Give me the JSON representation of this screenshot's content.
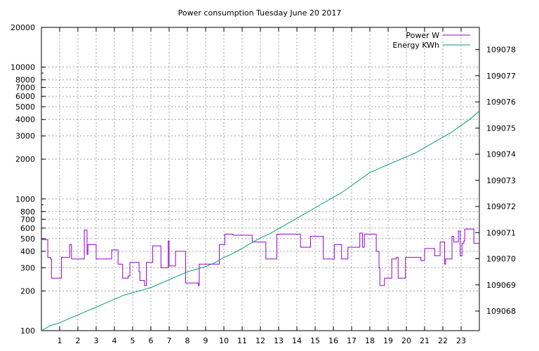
{
  "chart_data": {
    "type": "line",
    "title": "Power consumption Tuesday June 20 2017",
    "x_ticks": [
      "1",
      "2",
      "3",
      "4",
      "5",
      "6",
      "7",
      "8",
      "9",
      "10",
      "11",
      "12",
      "13",
      "14",
      "15",
      "16",
      "17",
      "18",
      "19",
      "20",
      "21",
      "22",
      "23"
    ],
    "xlim": [
      0,
      24
    ],
    "y_left": {
      "scale": "log",
      "ylim": [
        100,
        20000
      ],
      "ticks": [
        {
          "value": 100,
          "label": "100"
        },
        {
          "value": 200,
          "label": "200"
        },
        {
          "value": 300,
          "label": "300"
        },
        {
          "value": 400,
          "label": "400"
        },
        {
          "value": 500,
          "label": "500"
        },
        {
          "value": 600,
          "label": "600"
        },
        {
          "value": 700,
          "label": "700"
        },
        {
          "value": 800,
          "label": "800"
        },
        {
          "value": 1000,
          "label": "1000"
        },
        {
          "value": 2000,
          "label": "2000"
        },
        {
          "value": 3000,
          "label": "3000"
        },
        {
          "value": 4000,
          "label": "4000"
        },
        {
          "value": 5000,
          "label": "5000"
        },
        {
          "value": 6000,
          "label": "6000"
        },
        {
          "value": 7000,
          "label": "7000"
        },
        {
          "value": 8000,
          "label": "8000"
        },
        {
          "value": 10000,
          "label": "10000"
        },
        {
          "value": 20000,
          "label": "20000"
        }
      ]
    },
    "y_right": {
      "scale": "linear",
      "ylim": [
        109067.25,
        109078.85
      ],
      "ticks": [
        109068,
        109069,
        109070,
        109071,
        109072,
        109073,
        109074,
        109075,
        109076,
        109077,
        109078
      ]
    },
    "grid": true,
    "legend_position": "top-right",
    "series": [
      {
        "name": "Power W",
        "axis": "left",
        "color": "#9400d3",
        "step": true,
        "x": [
          0.0,
          0.3,
          0.35,
          0.5,
          0.55,
          1.1,
          1.55,
          1.65,
          2.3,
          2.35,
          2.5,
          2.55,
          2.85,
          3.0,
          3.5,
          3.85,
          3.9,
          4.2,
          4.45,
          4.75,
          4.85,
          5.35,
          5.4,
          5.65,
          5.75,
          5.9,
          6.1,
          6.5,
          6.55,
          6.95,
          7.0,
          7.35,
          7.6,
          7.9,
          8.55,
          8.6,
          8.65,
          9.15,
          9.75,
          9.8,
          10.05,
          10.5,
          10.95,
          11.55,
          11.6,
          12.3,
          12.7,
          12.9,
          13.5,
          14.2,
          14.4,
          14.75,
          15.0,
          15.45,
          15.5,
          16.05,
          16.15,
          16.45,
          16.8,
          17.1,
          17.45,
          17.5,
          17.6,
          17.65,
          17.7,
          18.3,
          18.35,
          18.5,
          18.55,
          18.7,
          18.8,
          19.2,
          19.3,
          19.45,
          19.55,
          19.95,
          20.15,
          20.8,
          21.0,
          21.2,
          21.55,
          21.85,
          22.0,
          22.1,
          22.15,
          22.5,
          22.6,
          22.7,
          22.85,
          22.95,
          23.05,
          23.15,
          23.2,
          23.55,
          23.7,
          24.0
        ],
        "values": [
          490,
          490,
          360,
          350,
          250,
          360,
          450,
          350,
          350,
          580,
          380,
          450,
          450,
          350,
          350,
          410,
          410,
          320,
          250,
          260,
          330,
          280,
          240,
          220,
          330,
          330,
          440,
          440,
          300,
          480,
          310,
          400,
          400,
          230,
          230,
          220,
          320,
          320,
          450,
          450,
          540,
          530,
          530,
          470,
          470,
          350,
          350,
          540,
          540,
          430,
          430,
          520,
          520,
          350,
          350,
          450,
          450,
          350,
          430,
          430,
          550,
          550,
          430,
          430,
          540,
          540,
          400,
          300,
          220,
          220,
          250,
          350,
          350,
          360,
          250,
          360,
          360,
          340,
          420,
          420,
          370,
          470,
          470,
          320,
          350,
          520,
          470,
          470,
          570,
          370,
          460,
          480,
          590,
          590,
          460,
          460
        ]
      },
      {
        "name": "Energy KWh",
        "axis": "right",
        "color": "#009e73",
        "x": [
          0.0,
          0.5,
          1.0,
          1.5,
          2.0,
          2.5,
          3.0,
          3.5,
          4.0,
          4.5,
          5.0,
          5.5,
          6.0,
          6.5,
          7.0,
          7.5,
          8.0,
          8.5,
          9.0,
          9.5,
          10.0,
          10.5,
          11.0,
          11.5,
          12.0,
          12.5,
          13.0,
          13.5,
          14.0,
          14.5,
          15.0,
          15.5,
          16.0,
          16.5,
          17.0,
          17.5,
          18.0,
          18.5,
          19.0,
          19.5,
          20.0,
          20.5,
          21.0,
          21.5,
          22.0,
          22.5,
          23.0,
          23.5,
          24.0
        ],
        "values": [
          109067.25,
          109067.45,
          109067.55,
          109067.7,
          109067.85,
          109068.0,
          109068.15,
          109068.3,
          109068.45,
          109068.6,
          109068.7,
          109068.8,
          109068.9,
          109069.05,
          109069.2,
          109069.35,
          109069.5,
          109069.6,
          109069.7,
          109069.85,
          109070.05,
          109070.2,
          109070.4,
          109070.6,
          109070.8,
          109070.95,
          109071.15,
          109071.35,
          109071.55,
          109071.75,
          109071.95,
          109072.15,
          109072.35,
          109072.55,
          109072.8,
          109073.05,
          109073.3,
          109073.45,
          109073.6,
          109073.75,
          109073.9,
          109074.05,
          109074.25,
          109074.45,
          109074.65,
          109074.85,
          109075.1,
          109075.35,
          109075.65
        ]
      }
    ]
  }
}
